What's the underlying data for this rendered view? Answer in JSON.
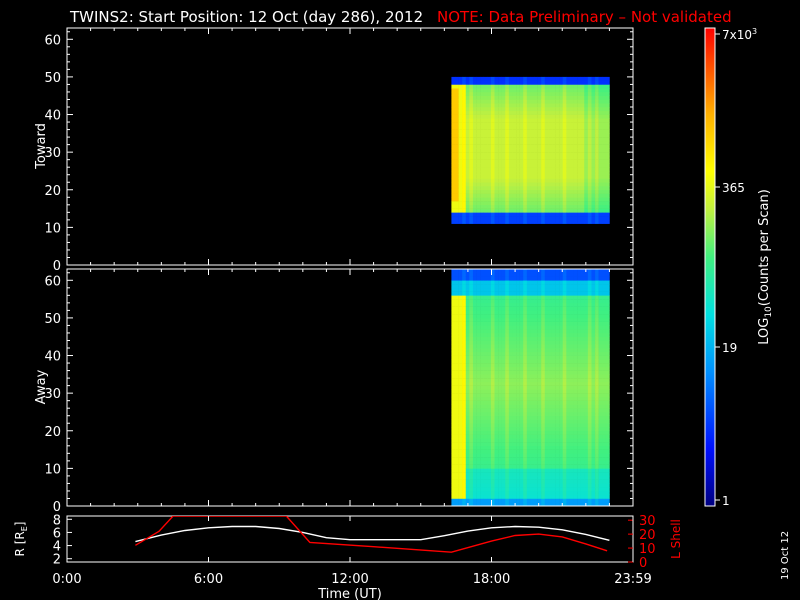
{
  "header": {
    "title": "TWINS2: Start Position: 12 Oct (day 286), 2012",
    "note": "NOTE: Data Preliminary – Not validated"
  },
  "footer": {
    "date_stamp": "19 Oct 12",
    "x_axis_label": "Time (UT)"
  },
  "colorbar": {
    "label": "LOG10(Counts per Scan)",
    "label_main": "LOG",
    "label_sub": "10",
    "label_rest": "(Counts per Scan)",
    "ticks": [
      "1",
      "19",
      "365",
      "7x10"
    ],
    "top_tick_exponent": "3"
  },
  "chart_data": [
    {
      "type": "heatmap",
      "panel": "Toward",
      "ylabel": "Toward",
      "xlabel": "",
      "xticks": [
        "0:00",
        "6:00",
        "12:00",
        "18:00",
        "23:59"
      ],
      "yticks": [
        "0",
        "10",
        "20",
        "30",
        "40",
        "50",
        "60"
      ],
      "xlim_hours": [
        0,
        24
      ],
      "ylim": [
        0,
        63
      ],
      "data_time_range_hours": [
        16.3,
        24.0
      ],
      "active_y_band": [
        13,
        49
      ],
      "color_scale": "log",
      "color_range": [
        1,
        7000
      ]
    },
    {
      "type": "heatmap",
      "panel": "Away",
      "ylabel": "Away",
      "xlabel": "",
      "xticks": [
        "0:00",
        "6:00",
        "12:00",
        "18:00",
        "23:59"
      ],
      "yticks": [
        "0",
        "10",
        "20",
        "30",
        "40",
        "50",
        "60"
      ],
      "xlim_hours": [
        0,
        24
      ],
      "ylim": [
        0,
        63
      ],
      "data_time_range_hours": [
        16.3,
        24.0
      ],
      "active_y_band": [
        1,
        63
      ],
      "color_scale": "log",
      "color_range": [
        1,
        7000
      ]
    },
    {
      "type": "line",
      "panel": "Orbit",
      "ylabel_left": "R [RE]",
      "ylabel_left_main": "R [R",
      "ylabel_left_sub": "E",
      "ylabel_left_close": "]",
      "ylabel_right": "L Shell",
      "xlabel": "Time (UT)",
      "xticks": [
        "0:00",
        "6:00",
        "12:00",
        "18:00",
        "23:59"
      ],
      "yticks_left": [
        "2",
        "4",
        "6",
        "8"
      ],
      "yticks_right": [
        "0",
        "10",
        "20",
        "30"
      ],
      "ylim_left": [
        1.5,
        8.5
      ],
      "ylim_right": [
        0,
        33
      ],
      "series": [
        {
          "name": "R",
          "color": "#ffffff",
          "x": [
            2.9,
            4,
            5,
            6,
            7,
            8,
            9,
            10,
            11,
            12,
            13,
            14,
            15,
            16,
            17,
            18,
            19,
            20,
            21,
            22,
            23
          ],
          "y": [
            4.6,
            5.6,
            6.3,
            6.7,
            6.9,
            6.9,
            6.6,
            6.0,
            5.2,
            4.9,
            4.9,
            4.9,
            4.9,
            5.5,
            6.2,
            6.7,
            6.9,
            6.8,
            6.4,
            5.7,
            4.8
          ]
        },
        {
          "name": "L Shell",
          "color": "#ff0000",
          "x": [
            2.9,
            3.9,
            4.5,
            9.3,
            10.3,
            13,
            16.3,
            18,
            19,
            20,
            21,
            22,
            22.9
          ],
          "y": [
            12,
            22,
            33,
            33,
            14,
            11,
            7,
            15,
            19,
            20,
            18,
            13,
            8
          ]
        }
      ]
    }
  ]
}
